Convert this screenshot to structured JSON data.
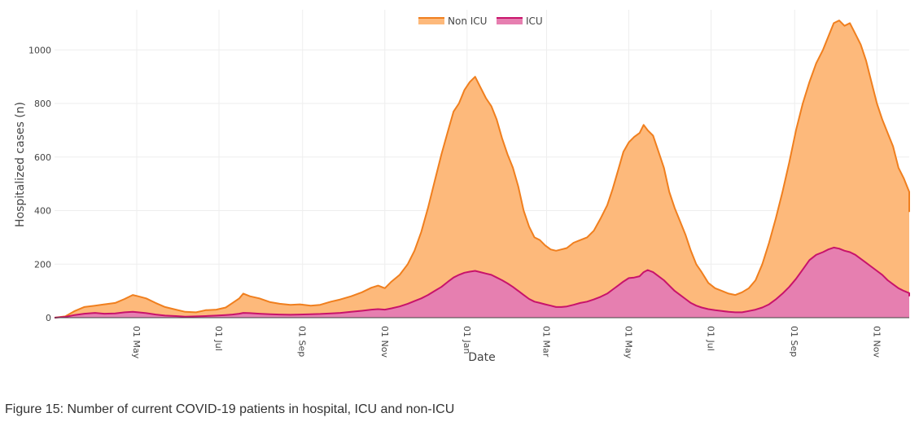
{
  "caption": "Figure 15: Number of current COVID-19 patients in hospital, ICU and non-ICU",
  "chart_data": {
    "type": "area",
    "title": "",
    "xlabel": "Date",
    "ylabel": "Hospitalized cases (n)",
    "ylim": [
      0,
      1150
    ],
    "y_ticks": [
      {
        "value": 0,
        "label": "0"
      },
      {
        "value": 200,
        "label": "200"
      },
      {
        "value": 400,
        "label": "400"
      },
      {
        "value": 600,
        "label": "600"
      },
      {
        "value": 800,
        "label": "800"
      },
      {
        "value": 1000,
        "label": "1000"
      }
    ],
    "x_ticks": [
      {
        "label": "01 May",
        "day": 61
      },
      {
        "label": "01 Jul",
        "day": 122
      },
      {
        "label": "01 Sep",
        "day": 184
      },
      {
        "label": "01 Nov",
        "day": 245
      },
      {
        "label": "01 Jan",
        "day": 306
      },
      {
        "label": "01 Mar",
        "day": 365
      },
      {
        "label": "01 May",
        "day": 426
      },
      {
        "label": "01 Jul",
        "day": 487
      },
      {
        "label": "01 Sep",
        "day": 549
      },
      {
        "label": "01 Nov",
        "day": 610
      }
    ],
    "xlim": [
      0,
      634
    ],
    "legend_position": "top-center",
    "stacked": true,
    "series": [
      {
        "name": "Non ICU",
        "line_color": "#f07f1e",
        "fill_color": "#fdb97b",
        "points": [
          [
            0,
            0
          ],
          [
            8,
            5
          ],
          [
            15,
            25
          ],
          [
            22,
            40
          ],
          [
            30,
            45
          ],
          [
            37,
            50
          ],
          [
            45,
            55
          ],
          [
            52,
            70
          ],
          [
            58,
            85
          ],
          [
            62,
            80
          ],
          [
            68,
            72
          ],
          [
            75,
            55
          ],
          [
            82,
            40
          ],
          [
            90,
            30
          ],
          [
            97,
            22
          ],
          [
            105,
            20
          ],
          [
            112,
            28
          ],
          [
            120,
            30
          ],
          [
            127,
            38
          ],
          [
            132,
            55
          ],
          [
            137,
            72
          ],
          [
            140,
            90
          ],
          [
            145,
            80
          ],
          [
            152,
            72
          ],
          [
            160,
            58
          ],
          [
            167,
            52
          ],
          [
            175,
            48
          ],
          [
            182,
            50
          ],
          [
            190,
            45
          ],
          [
            197,
            48
          ],
          [
            205,
            60
          ],
          [
            212,
            68
          ],
          [
            220,
            80
          ],
          [
            228,
            95
          ],
          [
            235,
            112
          ],
          [
            240,
            120
          ],
          [
            245,
            110
          ],
          [
            250,
            135
          ],
          [
            256,
            160
          ],
          [
            262,
            200
          ],
          [
            267,
            250
          ],
          [
            272,
            320
          ],
          [
            277,
            410
          ],
          [
            282,
            510
          ],
          [
            287,
            610
          ],
          [
            292,
            700
          ],
          [
            296,
            770
          ],
          [
            300,
            800
          ],
          [
            304,
            850
          ],
          [
            308,
            880
          ],
          [
            312,
            900
          ],
          [
            316,
            860
          ],
          [
            320,
            820
          ],
          [
            324,
            790
          ],
          [
            328,
            740
          ],
          [
            332,
            670
          ],
          [
            336,
            610
          ],
          [
            340,
            560
          ],
          [
            344,
            490
          ],
          [
            348,
            400
          ],
          [
            352,
            340
          ],
          [
            356,
            300
          ],
          [
            360,
            290
          ],
          [
            364,
            270
          ],
          [
            368,
            255
          ],
          [
            372,
            250
          ],
          [
            376,
            255
          ],
          [
            380,
            260
          ],
          [
            385,
            280
          ],
          [
            390,
            290
          ],
          [
            395,
            300
          ],
          [
            400,
            325
          ],
          [
            405,
            370
          ],
          [
            410,
            420
          ],
          [
            414,
            480
          ],
          [
            418,
            550
          ],
          [
            422,
            620
          ],
          [
            426,
            655
          ],
          [
            430,
            675
          ],
          [
            434,
            690
          ],
          [
            437,
            720
          ],
          [
            440,
            700
          ],
          [
            444,
            680
          ],
          [
            448,
            620
          ],
          [
            452,
            560
          ],
          [
            456,
            470
          ],
          [
            460,
            410
          ],
          [
            464,
            360
          ],
          [
            468,
            310
          ],
          [
            472,
            250
          ],
          [
            476,
            200
          ],
          [
            480,
            170
          ],
          [
            485,
            130
          ],
          [
            490,
            110
          ],
          [
            495,
            100
          ],
          [
            500,
            90
          ],
          [
            505,
            85
          ],
          [
            510,
            95
          ],
          [
            515,
            110
          ],
          [
            520,
            140
          ],
          [
            525,
            200
          ],
          [
            530,
            280
          ],
          [
            535,
            370
          ],
          [
            540,
            470
          ],
          [
            545,
            580
          ],
          [
            550,
            700
          ],
          [
            555,
            800
          ],
          [
            560,
            880
          ],
          [
            565,
            950
          ],
          [
            570,
            1000
          ],
          [
            574,
            1050
          ],
          [
            578,
            1100
          ],
          [
            582,
            1110
          ],
          [
            586,
            1090
          ],
          [
            590,
            1100
          ],
          [
            594,
            1060
          ],
          [
            598,
            1020
          ],
          [
            602,
            960
          ],
          [
            606,
            880
          ],
          [
            610,
            800
          ],
          [
            614,
            740
          ],
          [
            618,
            690
          ],
          [
            622,
            640
          ],
          [
            626,
            560
          ],
          [
            630,
            520
          ],
          [
            634,
            470
          ],
          [
            638,
            440
          ],
          [
            642,
            410
          ],
          [
            645,
            395
          ]
        ]
      },
      {
        "name": "ICU",
        "line_color": "#c8136b",
        "fill_color": "#e67fb0",
        "points": [
          [
            0,
            0
          ],
          [
            8,
            3
          ],
          [
            15,
            10
          ],
          [
            22,
            15
          ],
          [
            30,
            18
          ],
          [
            37,
            15
          ],
          [
            45,
            16
          ],
          [
            52,
            20
          ],
          [
            58,
            22
          ],
          [
            62,
            20
          ],
          [
            68,
            17
          ],
          [
            75,
            12
          ],
          [
            82,
            8
          ],
          [
            90,
            6
          ],
          [
            97,
            4
          ],
          [
            105,
            5
          ],
          [
            112,
            6
          ],
          [
            120,
            8
          ],
          [
            127,
            10
          ],
          [
            132,
            12
          ],
          [
            137,
            15
          ],
          [
            140,
            18
          ],
          [
            145,
            17
          ],
          [
            152,
            15
          ],
          [
            160,
            13
          ],
          [
            167,
            12
          ],
          [
            175,
            11
          ],
          [
            182,
            12
          ],
          [
            190,
            13
          ],
          [
            197,
            14
          ],
          [
            205,
            16
          ],
          [
            212,
            18
          ],
          [
            220,
            22
          ],
          [
            228,
            26
          ],
          [
            235,
            30
          ],
          [
            240,
            32
          ],
          [
            245,
            30
          ],
          [
            250,
            35
          ],
          [
            256,
            42
          ],
          [
            262,
            52
          ],
          [
            267,
            62
          ],
          [
            272,
            72
          ],
          [
            277,
            85
          ],
          [
            282,
            100
          ],
          [
            287,
            115
          ],
          [
            292,
            135
          ],
          [
            296,
            150
          ],
          [
            300,
            160
          ],
          [
            304,
            168
          ],
          [
            308,
            172
          ],
          [
            312,
            175
          ],
          [
            316,
            170
          ],
          [
            320,
            165
          ],
          [
            324,
            160
          ],
          [
            328,
            150
          ],
          [
            332,
            140
          ],
          [
            336,
            128
          ],
          [
            340,
            115
          ],
          [
            344,
            100
          ],
          [
            348,
            85
          ],
          [
            352,
            70
          ],
          [
            356,
            60
          ],
          [
            360,
            55
          ],
          [
            364,
            50
          ],
          [
            368,
            45
          ],
          [
            372,
            40
          ],
          [
            376,
            40
          ],
          [
            380,
            42
          ],
          [
            385,
            48
          ],
          [
            390,
            55
          ],
          [
            395,
            60
          ],
          [
            400,
            68
          ],
          [
            405,
            78
          ],
          [
            410,
            90
          ],
          [
            414,
            105
          ],
          [
            418,
            120
          ],
          [
            422,
            135
          ],
          [
            426,
            148
          ],
          [
            430,
            150
          ],
          [
            434,
            155
          ],
          [
            437,
            170
          ],
          [
            440,
            178
          ],
          [
            444,
            170
          ],
          [
            448,
            155
          ],
          [
            452,
            140
          ],
          [
            456,
            120
          ],
          [
            460,
            100
          ],
          [
            464,
            85
          ],
          [
            468,
            70
          ],
          [
            472,
            55
          ],
          [
            476,
            45
          ],
          [
            480,
            38
          ],
          [
            485,
            32
          ],
          [
            490,
            28
          ],
          [
            495,
            25
          ],
          [
            500,
            22
          ],
          [
            505,
            20
          ],
          [
            510,
            20
          ],
          [
            515,
            25
          ],
          [
            520,
            30
          ],
          [
            525,
            38
          ],
          [
            530,
            50
          ],
          [
            535,
            68
          ],
          [
            540,
            90
          ],
          [
            545,
            115
          ],
          [
            550,
            145
          ],
          [
            555,
            180
          ],
          [
            560,
            215
          ],
          [
            565,
            235
          ],
          [
            570,
            245
          ],
          [
            574,
            255
          ],
          [
            578,
            262
          ],
          [
            582,
            258
          ],
          [
            586,
            250
          ],
          [
            590,
            245
          ],
          [
            594,
            235
          ],
          [
            598,
            220
          ],
          [
            602,
            205
          ],
          [
            606,
            190
          ],
          [
            610,
            175
          ],
          [
            614,
            160
          ],
          [
            618,
            140
          ],
          [
            622,
            125
          ],
          [
            626,
            110
          ],
          [
            630,
            100
          ],
          [
            634,
            92
          ],
          [
            638,
            88
          ],
          [
            642,
            82
          ],
          [
            645,
            80
          ]
        ]
      }
    ]
  }
}
